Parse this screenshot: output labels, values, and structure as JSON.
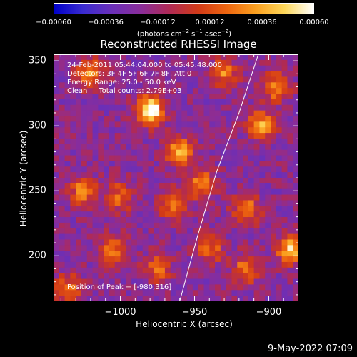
{
  "chart_data": {
    "type": "heatmap",
    "title": "Reconstructed RHESSI Image",
    "xlabel": "Heliocentric X (arcsec)",
    "ylabel": "Heliocentric Y (arcsec)",
    "xlim": [
      -1045,
      -880
    ],
    "ylim": [
      165,
      355
    ],
    "x_ticks": [
      -1000,
      -950,
      -900
    ],
    "x_tick_labels": [
      "−1000",
      "−950",
      "−900"
    ],
    "y_ticks": [
      200,
      250,
      300,
      350
    ],
    "y_tick_labels": [
      "200",
      "250",
      "300",
      "350"
    ],
    "colorbar": {
      "min": -0.0006,
      "max": 0.0006,
      "ticks": [
        -0.0006,
        -0.00036,
        -0.00012,
        0.00012,
        0.00036,
        0.0006
      ],
      "tick_labels": [
        "−0.00060",
        "−0.00036",
        "−0.00012",
        "0.00012",
        "0.00036",
        "0.00060"
      ],
      "units_text": "(photons cm",
      "units_exp1": "−2",
      "units_mid": " s",
      "units_exp2": "−1",
      "units_after": " asec",
      "units_exp3": "−2",
      "units_close": ")",
      "colormap": [
        "#0000c8",
        "#3a2bd0",
        "#6a2fb8",
        "#8a2d9a",
        "#b02a55",
        "#d23a18",
        "#ee6610",
        "#fba020",
        "#fdd75a",
        "#ffffff"
      ]
    },
    "annotations": [
      "24-Feb-2011 05:44:04.000 to 05:45:48.000",
      "Detectors: 3F 4F 5F 6F 7F 8F, Att 0",
      "Energy Range: 25.0 - 50.0 keV",
      "Clean     Total counts: 2.79E+03"
    ],
    "peak_label": "Position of Peak = [-980,316]",
    "peak": [
      -980,
      316
    ],
    "limb_arc": [
      [
        -960,
        165
      ],
      [
        -948,
        215
      ],
      [
        -935,
        265
      ],
      [
        -920,
        310
      ],
      [
        -907,
        355
      ]
    ],
    "hot_spots": [
      {
        "x": -980,
        "y": 312,
        "amp": 1.0
      },
      {
        "x": -1020,
        "y": 340,
        "amp": 0.55
      },
      {
        "x": -960,
        "y": 280,
        "amp": 0.6
      },
      {
        "x": -945,
        "y": 255,
        "amp": 0.55
      },
      {
        "x": -1000,
        "y": 245,
        "amp": 0.45
      },
      {
        "x": -1025,
        "y": 250,
        "amp": 0.5
      },
      {
        "x": -965,
        "y": 240,
        "amp": 0.5
      },
      {
        "x": -915,
        "y": 235,
        "amp": 0.55
      },
      {
        "x": -905,
        "y": 300,
        "amp": 0.6
      },
      {
        "x": -895,
        "y": 330,
        "amp": 0.55
      },
      {
        "x": -930,
        "y": 340,
        "amp": 0.5
      },
      {
        "x": -885,
        "y": 205,
        "amp": 0.75
      },
      {
        "x": -915,
        "y": 190,
        "amp": 0.5
      },
      {
        "x": -1005,
        "y": 205,
        "amp": 0.5
      },
      {
        "x": -1035,
        "y": 175,
        "amp": 0.45
      },
      {
        "x": -975,
        "y": 190,
        "amp": 0.45
      },
      {
        "x": -940,
        "y": 205,
        "amp": 0.45
      }
    ]
  },
  "date_stamp": "9-May-2022 07:09"
}
